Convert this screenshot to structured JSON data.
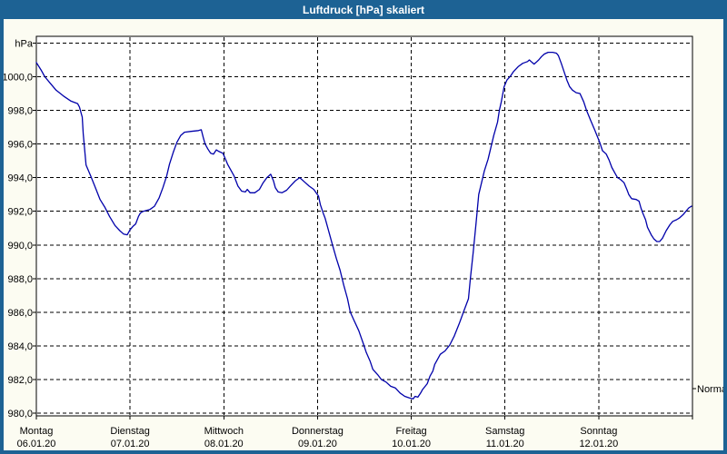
{
  "title_bar": {
    "text": "Luftdruck [hPa] skaliert"
  },
  "colors": {
    "frame": "#1d6294",
    "title_text": "#ffffff",
    "content_bg": "#fcfcf2",
    "plot_bg": "#ffffff",
    "grid": "#000000",
    "line": "#0000aa",
    "label": "#000000"
  },
  "chart_data": {
    "type": "line",
    "title": "Luftdruck [hPa] skaliert",
    "ylabel": "hPa",
    "grid": true,
    "ylim": [
      980,
      1002
    ],
    "y_tick_step": 2,
    "y_tick_labels": [
      "1000,0",
      "998,0",
      "996,0",
      "994,0",
      "992,0",
      "990,0",
      "988,0",
      "986,0",
      "984,0",
      "982,0",
      "980,0"
    ],
    "x_days": [
      {
        "name": "Montag",
        "date": "06.01.20"
      },
      {
        "name": "Dienstag",
        "date": "07.01.20"
      },
      {
        "name": "Mittwoch",
        "date": "08.01.20"
      },
      {
        "name": "Donnerstag",
        "date": "09.01.20"
      },
      {
        "name": "Freitag",
        "date": "10.01.20"
      },
      {
        "name": "Samstag",
        "date": "11.01.20"
      },
      {
        "name": "Sonntag",
        "date": "12.01.20"
      }
    ],
    "annotations": [
      {
        "label": "Normal",
        "hPa": 981.45,
        "side": "right"
      }
    ],
    "series": [
      {
        "name": "Luftdruck",
        "color": "#0000aa",
        "x_unit": "days_since_2020-01-06",
        "y_unit": "hPa",
        "points": [
          [
            0,
            1000.85
          ],
          [
            0.05,
            1000.4
          ],
          [
            0.09,
            1000
          ],
          [
            0.15,
            999.6
          ],
          [
            0.21,
            999.2
          ],
          [
            0.29,
            998.85
          ],
          [
            0.37,
            998.55
          ],
          [
            0.44,
            998.4
          ],
          [
            0.46,
            998.2
          ],
          [
            0.49,
            997.6
          ],
          [
            0.5,
            996.6
          ],
          [
            0.53,
            994.75
          ],
          [
            0.58,
            994.1
          ],
          [
            0.63,
            993.4
          ],
          [
            0.68,
            992.7
          ],
          [
            0.73,
            992.25
          ],
          [
            0.78,
            991.7
          ],
          [
            0.84,
            991.15
          ],
          [
            0.89,
            990.85
          ],
          [
            0.93,
            990.65
          ],
          [
            0.97,
            990.6
          ],
          [
            1,
            990.9
          ],
          [
            1.03,
            991.1
          ],
          [
            1.06,
            991.25
          ],
          [
            1.09,
            991.7
          ],
          [
            1.11,
            991.9
          ],
          [
            1.14,
            992
          ],
          [
            1.21,
            992.1
          ],
          [
            1.26,
            992.3
          ],
          [
            1.31,
            992.8
          ],
          [
            1.35,
            993.4
          ],
          [
            1.39,
            994.1
          ],
          [
            1.42,
            994.8
          ],
          [
            1.46,
            995.5
          ],
          [
            1.5,
            996.1
          ],
          [
            1.54,
            996.5
          ],
          [
            1.58,
            996.7
          ],
          [
            1.65,
            996.75
          ],
          [
            1.73,
            996.8
          ],
          [
            1.76,
            996.85
          ],
          [
            1.78,
            996.4
          ],
          [
            1.8,
            996
          ],
          [
            1.83,
            995.7
          ],
          [
            1.86,
            995.45
          ],
          [
            1.89,
            995.4
          ],
          [
            1.92,
            995.65
          ],
          [
            1.95,
            995.55
          ],
          [
            1.99,
            995.45
          ],
          [
            2.01,
            995.2
          ],
          [
            2.04,
            994.8
          ],
          [
            2.07,
            994.5
          ],
          [
            2.11,
            994.1
          ],
          [
            2.15,
            993.5
          ],
          [
            2.19,
            993.2
          ],
          [
            2.23,
            993.15
          ],
          [
            2.25,
            993.3
          ],
          [
            2.28,
            993.1
          ],
          [
            2.33,
            993.1
          ],
          [
            2.38,
            993.3
          ],
          [
            2.42,
            993.7
          ],
          [
            2.46,
            994
          ],
          [
            2.5,
            994.2
          ],
          [
            2.53,
            993.8
          ],
          [
            2.55,
            993.4
          ],
          [
            2.58,
            993.15
          ],
          [
            2.62,
            993.1
          ],
          [
            2.67,
            993.25
          ],
          [
            2.71,
            993.5
          ],
          [
            2.76,
            993.8
          ],
          [
            2.81,
            994
          ],
          [
            2.86,
            993.75
          ],
          [
            2.91,
            993.5
          ],
          [
            2.96,
            993.3
          ],
          [
            3.01,
            992.9
          ],
          [
            3.03,
            992.4
          ],
          [
            3.06,
            991.9
          ],
          [
            3.08,
            991.6
          ],
          [
            3.12,
            990.8
          ],
          [
            3.16,
            990
          ],
          [
            3.2,
            989.2
          ],
          [
            3.24,
            988.5
          ],
          [
            3.28,
            987.6
          ],
          [
            3.32,
            986.8
          ],
          [
            3.35,
            986
          ],
          [
            3.39,
            985.5
          ],
          [
            3.44,
            984.9
          ],
          [
            3.49,
            984.1
          ],
          [
            3.52,
            983.6
          ],
          [
            3.56,
            983.1
          ],
          [
            3.59,
            982.6
          ],
          [
            3.64,
            982.3
          ],
          [
            3.68,
            982
          ],
          [
            3.73,
            981.85
          ],
          [
            3.78,
            981.6
          ],
          [
            3.83,
            981.5
          ],
          [
            3.88,
            981.2
          ],
          [
            3.93,
            981
          ],
          [
            3.98,
            980.9
          ],
          [
            4.02,
            980.85
          ],
          [
            4.04,
            981
          ],
          [
            4.07,
            980.95
          ],
          [
            4.1,
            981.2
          ],
          [
            4.12,
            981.4
          ],
          [
            4.17,
            981.75
          ],
          [
            4.2,
            982.2
          ],
          [
            4.23,
            982.5
          ],
          [
            4.25,
            982.9
          ],
          [
            4.28,
            983.2
          ],
          [
            4.31,
            983.5
          ],
          [
            4.36,
            983.7
          ],
          [
            4.41,
            984.05
          ],
          [
            4.46,
            984.6
          ],
          [
            4.51,
            985.3
          ],
          [
            4.56,
            986.05
          ],
          [
            4.61,
            986.8
          ],
          [
            4.63,
            988
          ],
          [
            4.66,
            989.5
          ],
          [
            4.69,
            991.2
          ],
          [
            4.72,
            993
          ],
          [
            4.75,
            993.7
          ],
          [
            4.78,
            994.4
          ],
          [
            4.82,
            995.1
          ],
          [
            4.85,
            995.8
          ],
          [
            4.88,
            996.5
          ],
          [
            4.92,
            997.3
          ],
          [
            4.94,
            998
          ],
          [
            4.96,
            998.5
          ],
          [
            4.99,
            999.4
          ],
          [
            5.02,
            999.8
          ],
          [
            5.06,
            1000.05
          ],
          [
            5.09,
            1000.3
          ],
          [
            5.14,
            1000.6
          ],
          [
            5.19,
            1000.8
          ],
          [
            5.24,
            1000.9
          ],
          [
            5.26,
            1001
          ],
          [
            5.29,
            1000.85
          ],
          [
            5.31,
            1000.75
          ],
          [
            5.33,
            1000.85
          ],
          [
            5.36,
            1001
          ],
          [
            5.39,
            1001.2
          ],
          [
            5.42,
            1001.35
          ],
          [
            5.46,
            1001.45
          ],
          [
            5.51,
            1001.45
          ],
          [
            5.55,
            1001.4
          ],
          [
            5.57,
            1001.25
          ],
          [
            5.6,
            1000.8
          ],
          [
            5.63,
            1000.3
          ],
          [
            5.66,
            999.8
          ],
          [
            5.69,
            999.4
          ],
          [
            5.72,
            999.2
          ],
          [
            5.76,
            999.05
          ],
          [
            5.8,
            999
          ],
          [
            5.84,
            998.5
          ],
          [
            5.87,
            998
          ],
          [
            5.91,
            997.45
          ],
          [
            5.96,
            996.8
          ],
          [
            6.01,
            996.1
          ],
          [
            6.04,
            995.6
          ],
          [
            6.08,
            995.4
          ],
          [
            6.11,
            995.05
          ],
          [
            6.14,
            994.6
          ],
          [
            6.18,
            994.2
          ],
          [
            6.2,
            994
          ],
          [
            6.23,
            993.9
          ],
          [
            6.27,
            993.7
          ],
          [
            6.3,
            993.3
          ],
          [
            6.32,
            993
          ],
          [
            6.35,
            992.75
          ],
          [
            6.4,
            992.7
          ],
          [
            6.43,
            992.6
          ],
          [
            6.45,
            992.2
          ],
          [
            6.47,
            991.9
          ],
          [
            6.5,
            991.5
          ],
          [
            6.52,
            991.05
          ],
          [
            6.56,
            990.6
          ],
          [
            6.59,
            990.35
          ],
          [
            6.62,
            990.2
          ],
          [
            6.65,
            990.2
          ],
          [
            6.68,
            990.4
          ],
          [
            6.72,
            990.85
          ],
          [
            6.76,
            991.2
          ],
          [
            6.79,
            991.4
          ],
          [
            6.83,
            991.5
          ],
          [
            6.86,
            991.6
          ],
          [
            6.9,
            991.8
          ],
          [
            6.93,
            992
          ],
          [
            6.96,
            992.2
          ],
          [
            6.99,
            992.3
          ]
        ]
      }
    ]
  }
}
